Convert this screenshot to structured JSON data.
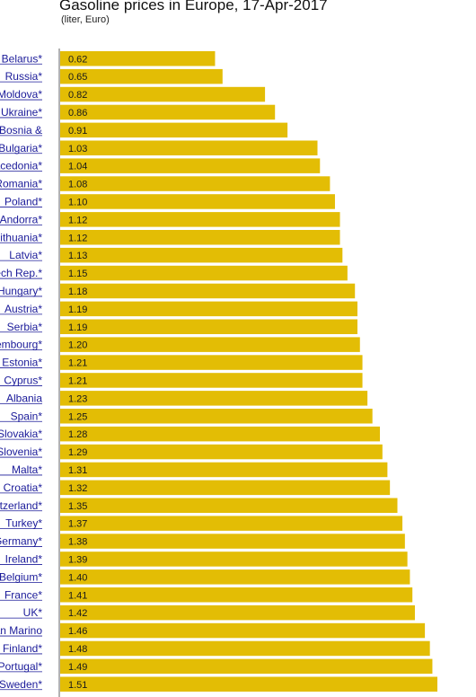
{
  "chart_data": {
    "type": "bar",
    "orientation": "horizontal",
    "title": "Gasoline prices in Europe, 17-Apr-2017",
    "subtitle": "(liter, Euro)",
    "categories": [
      "Belarus*",
      "Russia*",
      "Moldova*",
      "Ukraine*",
      "Bosnia &",
      "Bulgaria*",
      "Macedonia*",
      "Romania*",
      "Poland*",
      "Andorra*",
      "Lithuania*",
      "Latvia*",
      "Czech Rep.*",
      "Hungary*",
      "Austria*",
      "Serbia*",
      "Luxembourg*",
      "Estonia*",
      "Cyprus*",
      "Albania",
      "Spain*",
      "Slovakia*",
      "Slovenia*",
      "Malta*",
      "Croatia*",
      "Switzerland*",
      "Turkey*",
      "Germany*",
      "Ireland*",
      "Belgium*",
      "France*",
      "UK*",
      "San Marino",
      "Finland*",
      "Portugal*",
      "Sweden*"
    ],
    "values": [
      0.62,
      0.65,
      0.82,
      0.86,
      0.91,
      1.03,
      1.04,
      1.08,
      1.1,
      1.12,
      1.12,
      1.13,
      1.15,
      1.18,
      1.19,
      1.19,
      1.2,
      1.21,
      1.21,
      1.23,
      1.25,
      1.28,
      1.29,
      1.31,
      1.32,
      1.35,
      1.37,
      1.38,
      1.39,
      1.4,
      1.41,
      1.42,
      1.46,
      1.48,
      1.49,
      1.51
    ],
    "value_labels": [
      "0.62",
      "0.65",
      "0.82",
      "0.86",
      "0.91",
      "1.03",
      "1.04",
      "1.08",
      "1.10",
      "1.12",
      "1.12",
      "1.13",
      "1.15",
      "1.18",
      "1.19",
      "1.19",
      "1.20",
      "1.21",
      "1.21",
      "1.23",
      "1.25",
      "1.28",
      "1.29",
      "1.31",
      "1.32",
      "1.35",
      "1.37",
      "1.38",
      "1.39",
      "1.40",
      "1.41",
      "1.42",
      "1.46",
      "1.48",
      "1.49",
      "1.51"
    ],
    "xlim": [
      0,
      1.51
    ],
    "grid": false,
    "legend": "none",
    "bar_color": "#e3bd05",
    "label_color": "#1a1a99"
  }
}
